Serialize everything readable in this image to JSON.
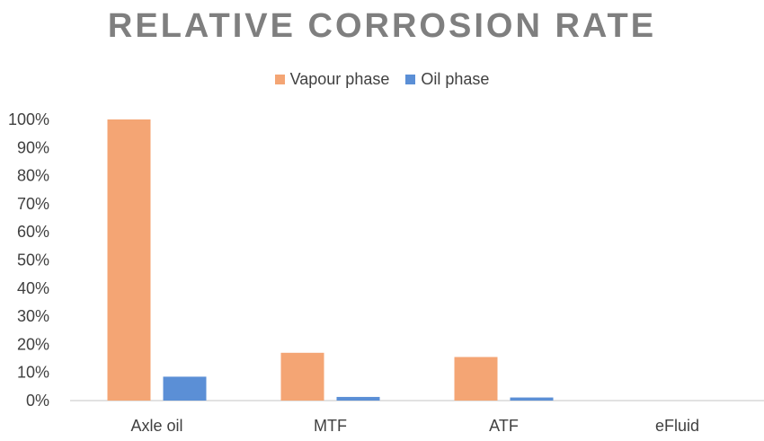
{
  "chart_data": {
    "type": "bar",
    "title": "RELATIVE CORROSION RATE",
    "categories": [
      "Axle oil",
      "MTF",
      "ATF",
      "eFluid"
    ],
    "series": [
      {
        "name": "Vapour phase",
        "values": [
          100,
          17,
          15.5,
          0
        ],
        "color": "#f4a574"
      },
      {
        "name": "Oil phase",
        "values": [
          8.5,
          1.3,
          1.1,
          0
        ],
        "color": "#5b8fd6"
      }
    ],
    "ylim": [
      0,
      100
    ],
    "y_ticks": [
      "0%",
      "10%",
      "20%",
      "30%",
      "40%",
      "50%",
      "60%",
      "70%",
      "80%",
      "90%",
      "100%"
    ],
    "y_unit": "%",
    "grid": false,
    "legend_position": "top"
  }
}
